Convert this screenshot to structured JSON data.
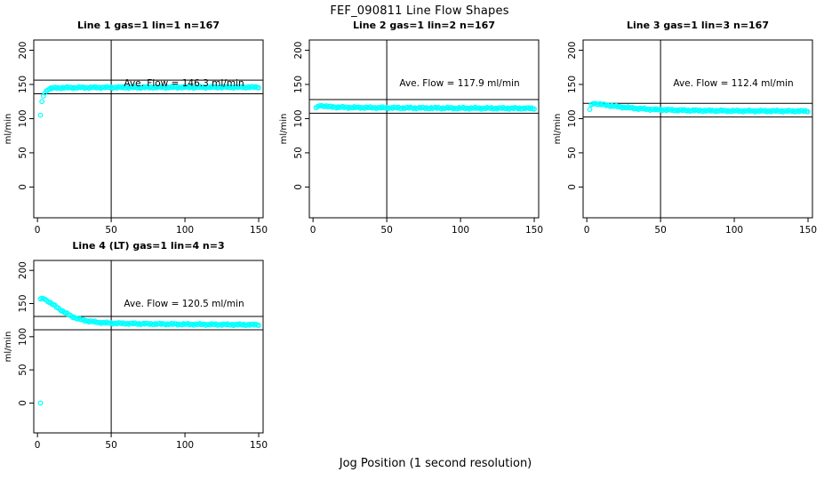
{
  "figure": {
    "title": "FEF_090811  Line Flow Shapes",
    "xlabel": "Jog Position (1 second resolution)",
    "ylabel": "ml/min"
  },
  "chart_data": {
    "type": "scatter",
    "title": "FEF_090811  Line Flow Shapes",
    "xlabel": "Jog Position (1 second resolution)",
    "ylabel": "ml/min",
    "point_color": "#00FFFF",
    "axis_color": "#000000",
    "marker": "open-circle",
    "grid": false,
    "xlim": [
      -2.5,
      153
    ],
    "ylim": [
      -45,
      215
    ],
    "xticks": [
      0,
      50,
      100,
      150
    ],
    "yticks": [
      0,
      50,
      100,
      150,
      200
    ],
    "vline_x": 50,
    "panels": [
      {
        "title": "Line 1 gas=1 lin=1 n=167",
        "n": 167,
        "ave_flow": 146.3,
        "annotation": "Ave. Flow =  146.3  ml/min",
        "ref_lines": [
          156.3,
          136.3
        ],
        "keypoints": [
          [
            2,
            105
          ],
          [
            3,
            125
          ],
          [
            4,
            133
          ],
          [
            5,
            137.5
          ],
          [
            6,
            140.5
          ],
          [
            7,
            142.5
          ],
          [
            8,
            143.5
          ],
          [
            10,
            144.5
          ],
          [
            13,
            145
          ],
          [
            20,
            145.2
          ],
          [
            30,
            145.4
          ],
          [
            50,
            145.6
          ],
          [
            70,
            145.7
          ],
          [
            100,
            145.9
          ],
          [
            150,
            146
          ]
        ],
        "extra_points": []
      },
      {
        "title": "Line 2 gas=1 lin=2 n=167",
        "n": 167,
        "ave_flow": 117.9,
        "annotation": "Ave. Flow =  117.9  ml/min",
        "ref_lines": [
          127.9,
          107.9
        ],
        "keypoints": [
          [
            2,
            116
          ],
          [
            3,
            117.5
          ],
          [
            4,
            118.5
          ],
          [
            5,
            119
          ],
          [
            6,
            119
          ],
          [
            8,
            118.2
          ],
          [
            10,
            117.6
          ],
          [
            13,
            117.1
          ],
          [
            17,
            116.7
          ],
          [
            25,
            116.3
          ],
          [
            40,
            116
          ],
          [
            60,
            115.7
          ],
          [
            90,
            115.4
          ],
          [
            120,
            115.2
          ],
          [
            150,
            115
          ]
        ],
        "extra_points": []
      },
      {
        "title": "Line 3 gas=1 lin=3 n=167",
        "n": 167,
        "ave_flow": 112.4,
        "annotation": "Ave. Flow =  112.4  ml/min",
        "ref_lines": [
          122.4,
          102.4
        ],
        "keypoints": [
          [
            3,
            120.5
          ],
          [
            4,
            121.5
          ],
          [
            5,
            122
          ],
          [
            6,
            122
          ],
          [
            8,
            121.4
          ],
          [
            10,
            120.8
          ],
          [
            13,
            119.8
          ],
          [
            16,
            118.9
          ],
          [
            20,
            117.8
          ],
          [
            25,
            116.6
          ],
          [
            30,
            115.6
          ],
          [
            35,
            114.7
          ],
          [
            40,
            114
          ],
          [
            45,
            113.4
          ],
          [
            50,
            113
          ],
          [
            60,
            112.4
          ],
          [
            70,
            112
          ],
          [
            80,
            111.7
          ],
          [
            95,
            111.4
          ],
          [
            110,
            111.2
          ],
          [
            130,
            111.1
          ],
          [
            150,
            111
          ]
        ],
        "extra_points": [
          [
            2,
            113.5
          ]
        ]
      },
      {
        "title": "Line 4 (LT) gas=1 lin=4 n=3",
        "n": 3,
        "ave_flow": 120.5,
        "annotation": "Ave. Flow =  120.5  ml/min",
        "ref_lines": [
          130.5,
          110.5
        ],
        "keypoints": [
          [
            2,
            157
          ],
          [
            3,
            158
          ],
          [
            4,
            157.5
          ],
          [
            5,
            156.5
          ],
          [
            6,
            155.2
          ],
          [
            8,
            152.3
          ],
          [
            10,
            149.2
          ],
          [
            12,
            146.2
          ],
          [
            14,
            143.2
          ],
          [
            16,
            140.2
          ],
          [
            18,
            137.3
          ],
          [
            20,
            134.6
          ],
          [
            23,
            131
          ],
          [
            26,
            128.2
          ],
          [
            30,
            125.5
          ],
          [
            34,
            123.7
          ],
          [
            38,
            122.4
          ],
          [
            42,
            121.5
          ],
          [
            46,
            120.9
          ],
          [
            50,
            120.5
          ],
          [
            56,
            120.1
          ],
          [
            62,
            119.8
          ],
          [
            70,
            119.5
          ],
          [
            80,
            119.2
          ],
          [
            90,
            119
          ],
          [
            100,
            118.8
          ],
          [
            115,
            118.5
          ],
          [
            130,
            118.3
          ],
          [
            150,
            118
          ]
        ],
        "extra_points": [
          [
            2,
            0
          ]
        ]
      }
    ]
  }
}
